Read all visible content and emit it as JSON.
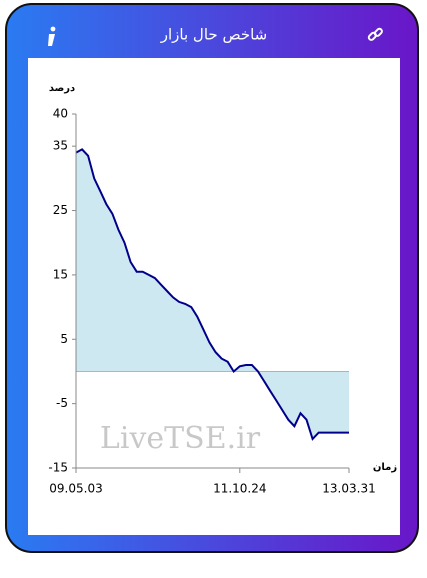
{
  "header": {
    "title": "شاخص حال بازار"
  },
  "chart_data": {
    "type": "area",
    "y_label": "درصد",
    "x_label": "زمان",
    "watermark": "LiveTSE.ir",
    "categories": [
      "09.05.03",
      null,
      null,
      null,
      null,
      null,
      null,
      null,
      null,
      null,
      null,
      null,
      null,
      null,
      null,
      null,
      null,
      null,
      null,
      null,
      null,
      null,
      null,
      null,
      null,
      null,
      null,
      "11.10.24",
      null,
      null,
      null,
      null,
      null,
      null,
      null,
      null,
      null,
      null,
      null,
      null,
      null,
      null,
      null,
      null,
      null,
      "13.03.31"
    ],
    "series": [
      {
        "name": null,
        "color": "#00008b",
        "fill": "#cde8f1",
        "values": [
          34,
          34.5,
          33.5,
          30,
          28,
          26,
          24.5,
          22,
          20,
          17,
          15.5,
          15.5,
          15,
          14.5,
          13.5,
          12.5,
          11.5,
          10.8,
          10.5,
          10,
          8.5,
          6.5,
          4.5,
          3,
          2,
          1.5,
          0,
          0.8,
          1,
          1,
          0,
          -1.5,
          -3,
          -4.5,
          -6,
          -7.5,
          -8.5,
          -6.5,
          -7.5,
          -10.5,
          -9.5,
          -9.5,
          -9.5,
          -9.5,
          -9.5,
          -9.5
        ]
      }
    ],
    "ylim": [
      -15,
      40
    ],
    "yticks": [
      -15,
      -5,
      5,
      15,
      25,
      35,
      40
    ],
    "grid": false
  }
}
